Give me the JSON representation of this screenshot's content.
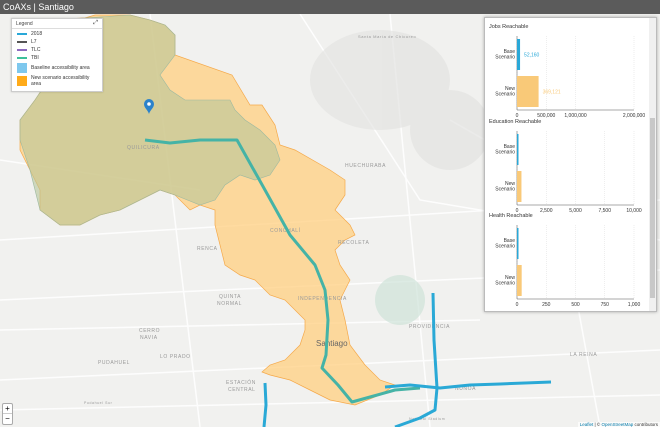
{
  "header": {
    "title": "CoAXs | Santiago"
  },
  "legend": {
    "title": "Legend",
    "expand_icon": "expand-icon",
    "items": [
      {
        "label": "2018",
        "color": "#29a8d8",
        "kind": "line"
      },
      {
        "label": "L7",
        "color": "#555555",
        "kind": "line"
      },
      {
        "label": "TLC",
        "color": "#8e6bbf",
        "kind": "line"
      },
      {
        "label": "TBI",
        "color": "#3cc09a",
        "kind": "line"
      },
      {
        "label": "Baseline accessibility area",
        "color": "#7ec8ee",
        "kind": "area"
      },
      {
        "label": "New scenario accessibility area",
        "color": "#ffab1a",
        "kind": "area"
      }
    ]
  },
  "map": {
    "labels": {
      "santa_maria": "Santa María de Chicureo",
      "quilicura": "QUILICURA",
      "huechuraba": "HUECHURABA",
      "conchali": "CONCHALÍ",
      "recoleta": "RECOLETA",
      "renca": "RENCA",
      "quinta_normal_1": "QUINTA",
      "quinta_normal_2": "NORMAL",
      "independencia": "INDEPENDENCIA",
      "cerro_navia_1": "CERRO",
      "cerro_navia_2": "NAVIA",
      "lo_prado": "LO PRADO",
      "pudahuel": "PUDAHUEL",
      "pudahuel_sur": "Pudahuel Sur",
      "santiago": "Santiago",
      "providencia": "PROVIDENCIA",
      "estacion_central_1": "ESTACIÓN",
      "estacion_central_2": "CENTRAL",
      "la_reina": "LA REINA",
      "nunoa": "ÑUÑOA",
      "stadium": "National Stadium"
    },
    "colors": {
      "route_tbi": "#45b3a6",
      "route_2018": "#2aa9d6",
      "new_area": "#ffcf80",
      "baseline_overlap": "#c9c78c"
    }
  },
  "zoom": {
    "in": "+",
    "out": "−"
  },
  "attribution": {
    "leaflet": "Leaflet",
    "sep": " | © ",
    "osm": "OpenStreetMap",
    "suffix": " contributors"
  },
  "chart_data": [
    {
      "type": "bar",
      "title": "Jobs Reachable",
      "categories": [
        "Base Scenario",
        "New Scenario"
      ],
      "values": [
        52160,
        369121
      ],
      "data_labels": [
        "52,160",
        "369,121"
      ],
      "xlim": [
        0,
        2000000
      ],
      "ticks": [
        0,
        500000,
        1000000,
        2000000
      ],
      "tick_labels": [
        "0",
        "500,000",
        "1,000,000",
        "2,000,000"
      ],
      "colors": [
        "#29a8d8",
        "#f9c978"
      ],
      "grid": true
    },
    {
      "type": "bar",
      "title": "Education Reachable",
      "categories": [
        "Base Scenario",
        "New Scenario"
      ],
      "values": [
        40,
        380
      ],
      "xlim": [
        0,
        10000
      ],
      "ticks": [
        0,
        2500,
        5000,
        7500,
        10000
      ],
      "tick_labels": [
        "0",
        "2,500",
        "5,000",
        "7,500",
        "10,000"
      ],
      "colors": [
        "#29a8d8",
        "#f9c978"
      ],
      "grid": true
    },
    {
      "type": "bar",
      "title": "Health Reachable",
      "categories": [
        "Base Scenario",
        "New Scenario"
      ],
      "values": [
        10,
        40
      ],
      "xlim": [
        0,
        1000
      ],
      "ticks": [
        0,
        250,
        500,
        750,
        1000
      ],
      "tick_labels": [
        "0",
        "250",
        "500",
        "750",
        "1,000"
      ],
      "colors": [
        "#29a8d8",
        "#f9c978"
      ],
      "grid": true
    }
  ]
}
